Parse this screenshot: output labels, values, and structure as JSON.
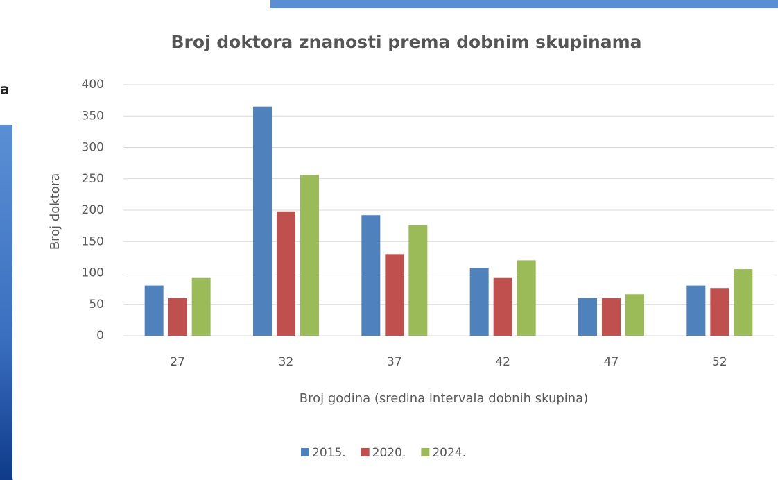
{
  "background_text": "a",
  "chart_data": {
    "type": "bar",
    "title": "Broj doktora znanosti prema dobnim skupinama",
    "x_label": "Broj godina (sredina intervala dobnih skupina)",
    "y_label": "Broj doktora",
    "categories": [
      "27",
      "32",
      "37",
      "42",
      "47",
      "52"
    ],
    "series": [
      {
        "name": "2015.",
        "color": "#4f81bd",
        "values": [
          80,
          365,
          192,
          108,
          60,
          80
        ]
      },
      {
        "name": "2020.",
        "color": "#c0504d",
        "values": [
          60,
          198,
          130,
          92,
          60,
          76
        ]
      },
      {
        "name": "2024.",
        "color": "#9bbb59",
        "values": [
          92,
          256,
          176,
          120,
          66,
          106
        ]
      }
    ],
    "ylim": [
      0,
      400
    ],
    "yticks": [
      0,
      50,
      100,
      150,
      200,
      250,
      300,
      350,
      400
    ],
    "grid": true,
    "legend": "bottom"
  }
}
